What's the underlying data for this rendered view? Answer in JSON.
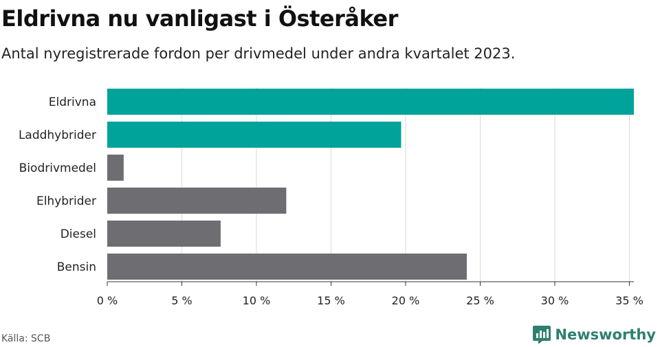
{
  "header": {
    "title": "Eldrivna nu vanligast i Österåker",
    "subtitle": "Antal nyregistrerade fordon per drivmedel under andra kvartalet 2023."
  },
  "footer": {
    "source": "Källa: SCB",
    "brand": "Newsworthy"
  },
  "colors": {
    "highlight": "#00a39a",
    "normal": "#6e6d72",
    "grid": "#d9d9d9",
    "axis": "#333333"
  },
  "chart_data": {
    "type": "bar",
    "orientation": "horizontal",
    "categories": [
      "Eldrivna",
      "Laddhybrider",
      "Biodrivmedel",
      "Elhybrider",
      "Diesel",
      "Bensin"
    ],
    "values": [
      35.3,
      19.7,
      1.1,
      12.0,
      7.6,
      24.1
    ],
    "highlighted": [
      true,
      true,
      false,
      false,
      false,
      false
    ],
    "xlim": [
      0,
      35.3
    ],
    "xticks": [
      0,
      5,
      10,
      15,
      20,
      25,
      30,
      35
    ],
    "xtick_labels": [
      "0 %",
      "5 %",
      "10 %",
      "15 %",
      "20 %",
      "25 %",
      "30 %",
      "35 %"
    ],
    "grid": true
  }
}
